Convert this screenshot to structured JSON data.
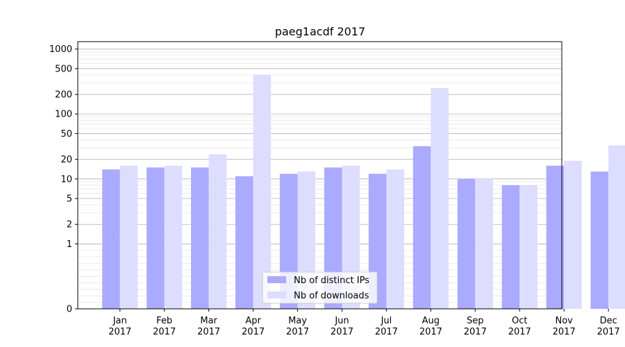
{
  "chart_data": {
    "type": "bar",
    "title": "paeg1acdf 2017",
    "xlabel": "",
    "ylabel": "",
    "y_scale": "symlog",
    "ylim": [
      0,
      1300
    ],
    "yticks": [
      0,
      1,
      2,
      5,
      10,
      20,
      50,
      100,
      200,
      500,
      1000
    ],
    "categories": [
      "Jan\n2017",
      "Feb\n2017",
      "Mar\n2017",
      "Apr\n2017",
      "May\n2017",
      "Jun\n2017",
      "Jul\n2017",
      "Aug\n2017",
      "Sep\n2017",
      "Oct\n2017",
      "Nov\n2017",
      "Dec\n2017"
    ],
    "series": [
      {
        "name": "Nb of distinct IPs",
        "color": "#aaaaff",
        "values": [
          14,
          15,
          15,
          11,
          12,
          15,
          12,
          32,
          10,
          8,
          16,
          13
        ]
      },
      {
        "name": "Nb of downloads",
        "color": "#ddddff",
        "values": [
          16,
          16,
          24,
          400,
          13,
          16,
          14,
          250,
          10,
          8,
          19,
          33
        ]
      }
    ],
    "grid": "y-major-and-minor",
    "legend_position": "lower-center"
  }
}
